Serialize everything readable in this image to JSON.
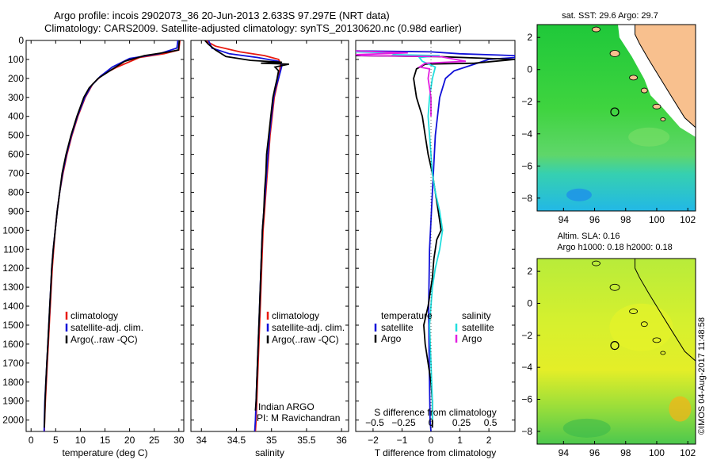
{
  "header": {
    "line1": "Argo profile: incois 2902073_36 20-Jun-2013 2.633S 97.297E (NRT data)",
    "line2": "Climatology: CARS2009. Satellite-adjusted climatology: synTS_20130620.nc (0.98d earlier)"
  },
  "stamp": "©IMOS 04-Aug-2017 11:48:58",
  "colors": {
    "climatology": "#e8190f",
    "satellite": "#1010d8",
    "argo": "#000000",
    "argo_salinity": "#e21fe0",
    "satellite_salinity": "#22dede",
    "land": "#f8c08e"
  },
  "chart_data": [
    {
      "id": "temperature",
      "type": "line",
      "xlabel": "temperature (deg C)",
      "ylabel": "",
      "xlim": [
        -1,
        31
      ],
      "ylim": [
        2060,
        0
      ],
      "xticks": [
        0,
        5,
        10,
        15,
        20,
        25,
        30
      ],
      "yticks": [
        0,
        100,
        200,
        300,
        400,
        500,
        600,
        700,
        800,
        900,
        1000,
        1100,
        1200,
        1300,
        1400,
        1500,
        1600,
        1700,
        1800,
        1900,
        2000
      ],
      "legend": [
        "climatology",
        "satellite-adj. clim.",
        "Argo(..raw -QC)"
      ],
      "series": [
        {
          "name": "climatology",
          "color": "#e8190f",
          "points": [
            [
              30.2,
              0
            ],
            [
              30,
              50
            ],
            [
              27,
              70
            ],
            [
              22,
              90
            ],
            [
              17.5,
              140
            ],
            [
              14.5,
              180
            ],
            [
              12.5,
              230
            ],
            [
              11,
              300
            ],
            [
              9.5,
              400
            ],
            [
              8.3,
              500
            ],
            [
              7.3,
              600
            ],
            [
              6.5,
              700
            ],
            [
              5.8,
              800
            ],
            [
              5.3,
              900
            ],
            [
              4.9,
              1000
            ],
            [
              4.6,
              1100
            ],
            [
              4.3,
              1200
            ],
            [
              4.1,
              1300
            ],
            [
              3.9,
              1400
            ],
            [
              3.7,
              1500
            ],
            [
              3.5,
              1600
            ],
            [
              3.3,
              1700
            ],
            [
              3.1,
              1800
            ],
            [
              2.9,
              1900
            ],
            [
              2.75,
              2000
            ],
            [
              2.7,
              2060
            ]
          ]
        },
        {
          "name": "satellite",
          "color": "#1010d8",
          "points": [
            [
              29.8,
              0
            ],
            [
              29.6,
              40
            ],
            [
              26,
              70
            ],
            [
              20,
              95
            ],
            [
              16.5,
              140
            ],
            [
              14,
              190
            ],
            [
              12.2,
              240
            ],
            [
              10.9,
              300
            ],
            [
              9.4,
              400
            ],
            [
              8.2,
              500
            ],
            [
              7.2,
              600
            ],
            [
              6.4,
              700
            ],
            [
              5.8,
              800
            ],
            [
              5.3,
              900
            ],
            [
              4.9,
              1000
            ],
            [
              4.5,
              1100
            ],
            [
              4.2,
              1200
            ],
            [
              4,
              1300
            ],
            [
              3.8,
              1400
            ],
            [
              3.6,
              1500
            ],
            [
              3.4,
              1600
            ],
            [
              3.2,
              1700
            ],
            [
              3.0,
              1800
            ],
            [
              2.8,
              1900
            ],
            [
              2.7,
              2000
            ],
            [
              2.65,
              2060
            ]
          ]
        },
        {
          "name": "argo",
          "color": "#000000",
          "points": [
            [
              30.1,
              0
            ],
            [
              29.9,
              50
            ],
            [
              28,
              60
            ],
            [
              23,
              80
            ],
            [
              19,
              110
            ],
            [
              16,
              160
            ],
            [
              13.6,
              200
            ],
            [
              11.8,
              250
            ],
            [
              10.7,
              300
            ],
            [
              9.3,
              400
            ],
            [
              8.1,
              500
            ],
            [
              7.1,
              600
            ],
            [
              6.3,
              700
            ],
            [
              5.8,
              800
            ],
            [
              5.3,
              900
            ],
            [
              4.9,
              1000
            ],
            [
              4.5,
              1100
            ],
            [
              4.2,
              1200
            ],
            [
              4,
              1300
            ],
            [
              3.8,
              1400
            ],
            [
              3.6,
              1500
            ],
            [
              3.4,
              1600
            ],
            [
              3.2,
              1700
            ],
            [
              3.0,
              1800
            ],
            [
              2.85,
              1900
            ],
            [
              2.75,
              2000
            ],
            [
              2.7,
              2040
            ]
          ]
        }
      ]
    },
    {
      "id": "salinity",
      "type": "line",
      "xlabel": "salinity",
      "ylabel": "",
      "xlim": [
        33.85,
        36.1
      ],
      "ylim": [
        2060,
        0
      ],
      "xticks": [
        34,
        34.5,
        35,
        35.5,
        36
      ],
      "legend": [
        "climatology",
        "satellite-adj. clim.",
        "Argo(..raw -QC)"
      ],
      "annotations": [
        "Indian ARGO",
        "PI: M Ravichandran"
      ],
      "series": [
        {
          "name": "climatology",
          "color": "#e8190f",
          "points": [
            [
              34.05,
              0
            ],
            [
              34.2,
              30
            ],
            [
              34.55,
              60
            ],
            [
              34.9,
              80
            ],
            [
              35.1,
              100
            ],
            [
              35.13,
              120
            ],
            [
              35.12,
              150
            ],
            [
              35.1,
              200
            ],
            [
              35.07,
              250
            ],
            [
              35.04,
              300
            ],
            [
              35.01,
              400
            ],
            [
              34.98,
              500
            ],
            [
              34.96,
              600
            ],
            [
              34.94,
              700
            ],
            [
              34.92,
              800
            ],
            [
              34.9,
              900
            ],
            [
              34.88,
              1000
            ],
            [
              34.86,
              1200
            ],
            [
              34.84,
              1400
            ],
            [
              34.82,
              1600
            ],
            [
              34.8,
              1800
            ],
            [
              34.78,
              2000
            ],
            [
              34.77,
              2060
            ]
          ]
        },
        {
          "name": "satellite",
          "color": "#1010d8",
          "points": [
            [
              34.1,
              0
            ],
            [
              34.15,
              40
            ],
            [
              34.4,
              70
            ],
            [
              34.8,
              90
            ],
            [
              35.1,
              110
            ],
            [
              35.15,
              130
            ],
            [
              35.13,
              160
            ],
            [
              35.1,
              200
            ],
            [
              35.06,
              250
            ],
            [
              35.03,
              300
            ],
            [
              35.0,
              400
            ],
            [
              34.97,
              500
            ],
            [
              34.95,
              600
            ],
            [
              34.93,
              700
            ],
            [
              34.91,
              800
            ],
            [
              34.89,
              900
            ],
            [
              34.87,
              1000
            ],
            [
              34.85,
              1200
            ],
            [
              34.83,
              1400
            ],
            [
              34.81,
              1600
            ],
            [
              34.79,
              1800
            ],
            [
              34.77,
              2000
            ],
            [
              34.76,
              2060
            ]
          ]
        },
        {
          "name": "argo",
          "color": "#000000",
          "points": [
            [
              34.05,
              0
            ],
            [
              34.1,
              20
            ],
            [
              34.2,
              50
            ],
            [
              34.35,
              85
            ],
            [
              34.7,
              105
            ],
            [
              35.15,
              115
            ],
            [
              34.85,
              120
            ],
            [
              35.25,
              125
            ],
            [
              35.05,
              140
            ],
            [
              35.1,
              160
            ],
            [
              35.08,
              200
            ],
            [
              35.05,
              250
            ],
            [
              35.02,
              300
            ],
            [
              34.99,
              400
            ],
            [
              34.96,
              500
            ],
            [
              34.93,
              600
            ],
            [
              34.92,
              700
            ],
            [
              34.9,
              800
            ],
            [
              34.89,
              900
            ],
            [
              34.87,
              1000
            ],
            [
              34.85,
              1200
            ],
            [
              34.83,
              1400
            ],
            [
              34.81,
              1600
            ],
            [
              34.79,
              1800
            ],
            [
              34.78,
              1900
            ],
            [
              34.77,
              1950
            ]
          ]
        }
      ]
    },
    {
      "id": "difference",
      "type": "line",
      "xlabel": "T difference from climatology",
      "xlabel_top": "S difference from climatology",
      "xlim": [
        -2.6,
        2.9
      ],
      "ylim": [
        2060,
        0
      ],
      "xticks": [
        -2,
        -1,
        0,
        1,
        2
      ],
      "xticks_s": [
        -0.5,
        -0.25,
        0,
        0.25,
        0.5
      ],
      "legend_left_title": "temperature",
      "legend_right_title": "salinity",
      "legend_items": [
        "satellite",
        "Argo",
        "satellite",
        "Argo"
      ],
      "series": [
        {
          "name": "T satellite",
          "color": "#1010d8",
          "points": [
            [
              -2.6,
              55
            ],
            [
              0,
              60
            ],
            [
              1,
              70
            ],
            [
              2.9,
              80
            ],
            [
              2.9,
              90
            ],
            [
              2,
              100
            ],
            [
              1.2,
              140
            ],
            [
              0.8,
              160
            ],
            [
              0.5,
              200
            ],
            [
              0.3,
              300
            ],
            [
              0.15,
              500
            ],
            [
              0.05,
              800
            ],
            [
              -0.05,
              1100
            ],
            [
              -0.08,
              1400
            ],
            [
              -0.06,
              1700
            ],
            [
              -0.03,
              2000
            ],
            [
              0,
              2060
            ]
          ]
        },
        {
          "name": "T argo",
          "color": "#000000",
          "points": [
            [
              -2.6,
              80
            ],
            [
              0.2,
              85
            ],
            [
              2.9,
              100
            ],
            [
              1.5,
              120
            ],
            [
              -0.2,
              125
            ],
            [
              -0.5,
              150
            ],
            [
              -0.6,
              200
            ],
            [
              -0.5,
              300
            ],
            [
              -0.3,
              400
            ],
            [
              -0.2,
              500
            ],
            [
              -0.1,
              600
            ],
            [
              0.05,
              700
            ],
            [
              0.15,
              800
            ],
            [
              0.25,
              900
            ],
            [
              0.35,
              1000
            ],
            [
              0.2,
              1050
            ],
            [
              0.1,
              1150
            ],
            [
              0.05,
              1250
            ],
            [
              0,
              1300
            ],
            [
              -0.1,
              1400
            ],
            [
              -0.25,
              1500
            ],
            [
              -0.2,
              1600
            ],
            [
              -0.1,
              1700
            ],
            [
              0,
              1800
            ],
            [
              0.05,
              1900
            ],
            [
              0.05,
              2000
            ],
            [
              0.05,
              2040
            ]
          ]
        },
        {
          "name": "S satellite",
          "color": "#22dede",
          "points": [
            [
              -2.6,
              60
            ],
            [
              -1.2,
              65
            ],
            [
              -1.3,
              75
            ],
            [
              0.3,
              80
            ],
            [
              -0.4,
              90
            ],
            [
              -0.3,
              110
            ],
            [
              0.15,
              140
            ],
            [
              0.05,
              200
            ],
            [
              -0.05,
              300
            ],
            [
              -0.1,
              400
            ],
            [
              -0.05,
              500
            ],
            [
              0.05,
              700
            ],
            [
              0.15,
              800
            ],
            [
              0.3,
              900
            ],
            [
              0.4,
              1000
            ],
            [
              0.3,
              1100
            ],
            [
              0.15,
              1200
            ],
            [
              0.05,
              1300
            ],
            [
              0,
              1400
            ],
            [
              -0.05,
              1500
            ],
            [
              0,
              1700
            ],
            [
              0.05,
              1900
            ],
            [
              0.05,
              2000
            ]
          ]
        },
        {
          "name": "S argo",
          "color": "#e21fe0",
          "points": [
            [
              -2.6,
              55
            ],
            [
              -0.8,
              65
            ],
            [
              -2.6,
              75
            ],
            [
              -2.4,
              80
            ],
            [
              0.3,
              85
            ],
            [
              1.2,
              110
            ],
            [
              -0.2,
              120
            ],
            [
              -0.4,
              140
            ],
            [
              -0.05,
              150
            ],
            [
              -0.1,
              200
            ],
            [
              0,
              300
            ],
            [
              0,
              400
            ]
          ]
        }
      ]
    },
    {
      "id": "sst_map",
      "type": "heatmap",
      "title": "sat. SST: 29.6  Argo: 29.7",
      "xticks": [
        94,
        96,
        98,
        100,
        102
      ],
      "yticks": [
        2,
        0,
        -2,
        -4,
        -6,
        -8
      ],
      "xlim": [
        92.3,
        102.5
      ],
      "ylim": [
        -8.8,
        2.8
      ],
      "argo_position": [
        97.297,
        -2.633
      ]
    },
    {
      "id": "sla_map",
      "type": "heatmap",
      "title": "Altim. SLA: 0.16",
      "subtitle": "Argo h1000: 0.18 h2000: 0.18",
      "xticks": [
        94,
        96,
        98,
        100,
        102
      ],
      "yticks": [
        2,
        0,
        -2,
        -4,
        -6,
        -8
      ],
      "xlim": [
        92.3,
        102.5
      ],
      "ylim": [
        -8.8,
        2.8
      ],
      "argo_position": [
        97.297,
        -2.633
      ]
    }
  ]
}
